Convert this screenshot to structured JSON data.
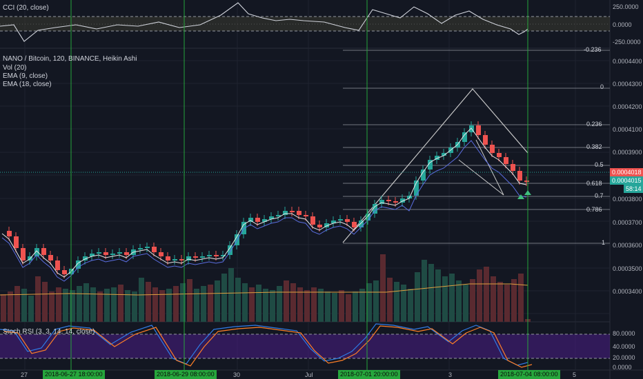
{
  "indicators": {
    "cci": "CCI (20, close)",
    "symbol": "NANO / Bitcoin, 120, BINANCE, Heikin Ashi",
    "vol": "Vol (20)",
    "ema1": "EMA (9, close)",
    "ema2": "EMA (18, close)",
    "stoch": "Stoch RSI (3, 3, 14, 14, close)"
  },
  "cci_axis": [
    "250.0000",
    "0.0000",
    "-250.0000"
  ],
  "price_axis": [
    "0.0004400",
    "0.0004300",
    "0.0004200",
    "0.0004100",
    "0.0003900",
    "0.0003800",
    "0.0003700",
    "0.0003600",
    "0.0003500",
    "0.0003400"
  ],
  "stoch_axis": [
    "80.0000",
    "40.0000",
    "20.0000",
    "0.0000"
  ],
  "price_tags": {
    "last": "0.0004018",
    "close": "0.0004015",
    "timer": "58:14"
  },
  "fib_levels": [
    "-0.236",
    "0",
    "0.236",
    "0.382",
    "0.5",
    "0.618",
    "0.7",
    "0.786",
    "1"
  ],
  "x_axis": [
    "27",
    "30",
    "Jul",
    "3",
    "5"
  ],
  "time_markers": [
    "2018-06-27 18:00:00",
    "2018-06-29 08:00:00",
    "2018-07-01 20:00:00",
    "2018-07-04 08:00:00"
  ],
  "colors": {
    "bull": "#26a69a",
    "bear": "#ef5350",
    "ema_fast": "#e8e8e8",
    "ema_slow": "#5b6ee1",
    "stoch_k": "#2f7be6",
    "stoch_d": "#ff7f27",
    "fib": "#9598a1",
    "marker": "#26a63c"
  },
  "price_range": [
    0.000337,
    0.000449
  ]
}
